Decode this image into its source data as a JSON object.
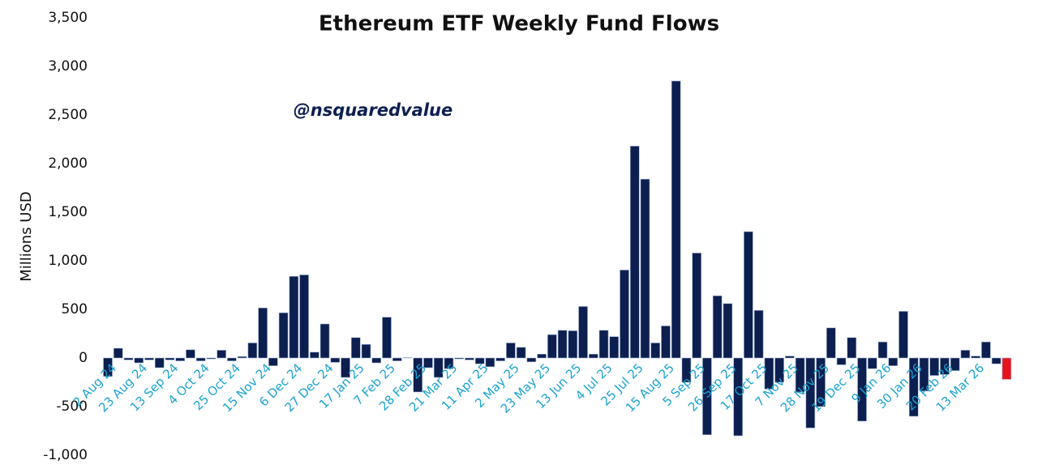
{
  "chart_data": {
    "type": "bar",
    "title": "Ethereum ETF Weekly Fund Flows",
    "annotation": "@nsquaredvalue",
    "y_label": "Millions USD",
    "categories": [
      "2 Aug 24",
      null,
      null,
      "23 Aug 24",
      null,
      null,
      "13 Sep 24",
      null,
      null,
      "4 Oct 24",
      null,
      null,
      "25 Oct 24",
      null,
      null,
      "15 Nov 24",
      null,
      null,
      "6 Dec 24",
      null,
      null,
      "27 Dec 24",
      null,
      null,
      "17 Jan 25",
      null,
      null,
      "7 Feb 25",
      null,
      null,
      "28 Feb 25",
      null,
      null,
      "21 Mar 25",
      null,
      null,
      "11 Apr 25",
      null,
      null,
      "2 May 25",
      null,
      null,
      "23 May 25",
      null,
      null,
      "13 Jun 25",
      null,
      null,
      "4 Jul 25",
      null,
      null,
      "25 Jul 25",
      null,
      null,
      "15 Aug 25",
      null,
      null,
      "5 Sep 25",
      null,
      null,
      "26 Sep 25",
      null,
      null,
      "17 Oct 25",
      null,
      null,
      "7 Nov 25",
      null,
      null,
      "28 Nov 25",
      null,
      null,
      "19 Dec 25",
      null,
      null,
      "9 Jan 26",
      null,
      null,
      "30 Jan 26",
      null,
      null,
      "20 Feb 26",
      null,
      null,
      "13 Mar 26",
      null,
      null,
      null
    ],
    "values": [
      -190,
      100,
      -20,
      -50,
      -20,
      -100,
      -20,
      -30,
      85,
      -30,
      -10,
      80,
      -30,
      15,
      155,
      515,
      -80,
      465,
      840,
      855,
      60,
      350,
      -45,
      -200,
      210,
      140,
      -50,
      420,
      -30,
      5,
      -350,
      -100,
      -200,
      -110,
      -10,
      -20,
      -60,
      -90,
      -30,
      155,
      110,
      -40,
      40,
      240,
      285,
      280,
      530,
      40,
      285,
      220,
      905,
      2180,
      1840,
      155,
      330,
      2850,
      -250,
      1080,
      -790,
      640,
      560,
      -800,
      1300,
      490,
      -320,
      -250,
      20,
      -350,
      -720,
      -500,
      310,
      -70,
      210,
      -650,
      -110,
      165,
      -80,
      480,
      -600,
      -340,
      -180,
      -170,
      -130,
      80,
      20,
      165,
      -60,
      -220
    ],
    "colors": [
      "#0c1f4f",
      "#0c1f4f",
      "#0c1f4f",
      "#0c1f4f",
      "#0c1f4f",
      "#0c1f4f",
      "#0c1f4f",
      "#0c1f4f",
      "#0c1f4f",
      "#0c1f4f",
      "#0c1f4f",
      "#0c1f4f",
      "#0c1f4f",
      "#0c1f4f",
      "#0c1f4f",
      "#0c1f4f",
      "#0c1f4f",
      "#0c1f4f",
      "#0c1f4f",
      "#0c1f4f",
      "#0c1f4f",
      "#0c1f4f",
      "#0c1f4f",
      "#0c1f4f",
      "#0c1f4f",
      "#0c1f4f",
      "#0c1f4f",
      "#0c1f4f",
      "#0c1f4f",
      "#0c1f4f",
      "#0c1f4f",
      "#0c1f4f",
      "#0c1f4f",
      "#0c1f4f",
      "#0c1f4f",
      "#0c1f4f",
      "#0c1f4f",
      "#0c1f4f",
      "#0c1f4f",
      "#0c1f4f",
      "#0c1f4f",
      "#0c1f4f",
      "#0c1f4f",
      "#0c1f4f",
      "#0c1f4f",
      "#0c1f4f",
      "#0c1f4f",
      "#0c1f4f",
      "#0c1f4f",
      "#0c1f4f",
      "#0c1f4f",
      "#0c1f4f",
      "#0c1f4f",
      "#0c1f4f",
      "#0c1f4f",
      "#0c1f4f",
      "#0c1f4f",
      "#0c1f4f",
      "#0c1f4f",
      "#0c1f4f",
      "#0c1f4f",
      "#0c1f4f",
      "#0c1f4f",
      "#0c1f4f",
      "#0c1f4f",
      "#0c1f4f",
      "#0c1f4f",
      "#0c1f4f",
      "#0c1f4f",
      "#0c1f4f",
      "#0c1f4f",
      "#0c1f4f",
      "#0c1f4f",
      "#0c1f4f",
      "#0c1f4f",
      "#0c1f4f",
      "#0c1f4f",
      "#0c1f4f",
      "#0c1f4f",
      "#0c1f4f",
      "#0c1f4f",
      "#0c1f4f",
      "#0c1f4f",
      "#0c1f4f",
      "#0c1f4f",
      "#0c1f4f",
      "#0c1f4f",
      "#e3141c"
    ],
    "ylim": [
      -1000,
      3500
    ],
    "yticks": [
      {
        "value": -1000,
        "label": "-1,000"
      },
      {
        "value": -500,
        "label": "-500"
      },
      0,
      500,
      {
        "value": 1000,
        "label": "1,000"
      },
      {
        "value": 1500,
        "label": "1,500"
      },
      {
        "value": 2000,
        "label": "2,000"
      },
      {
        "value": 2500,
        "label": "2,500"
      },
      {
        "value": 3000,
        "label": "3,000"
      },
      {
        "value": 3500,
        "label": "3,500"
      }
    ],
    "grid": false
  }
}
